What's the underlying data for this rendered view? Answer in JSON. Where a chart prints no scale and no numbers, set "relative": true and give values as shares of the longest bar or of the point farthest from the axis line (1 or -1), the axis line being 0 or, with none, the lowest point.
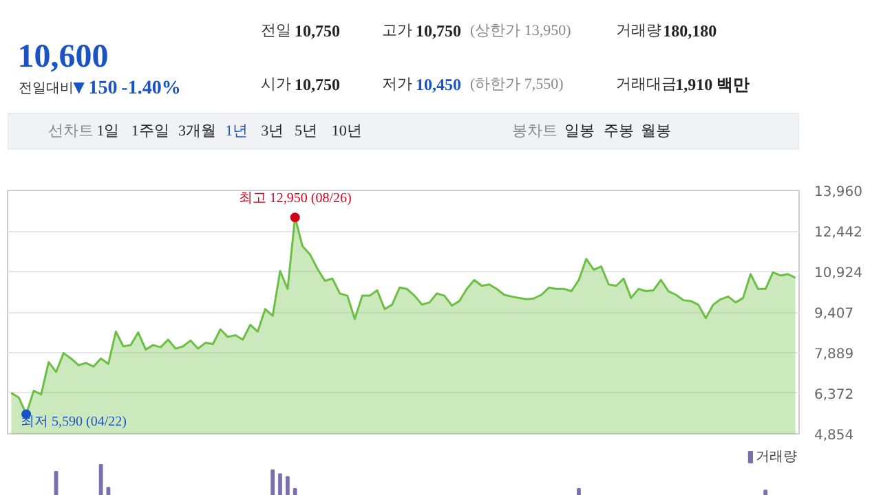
{
  "chart_data": [
    {
      "type": "other",
      "annotations": [
        "10,600",
        "전일대비",
        "▼150",
        "-1.40%",
        "전일",
        "10,750",
        "고가",
        "10,750",
        "(상한가 13,950)",
        "거래량",
        "180,180",
        "시가",
        "10,750",
        "저가",
        "10,450",
        "(하한가 7,550)",
        "거래대금",
        "1,910 백만",
        "선차트",
        "1일",
        "1주일",
        "3개월",
        "1년",
        "3년",
        "5년",
        "10년",
        "봉차트",
        "일봉",
        "주봉",
        "월봉"
      ]
    },
    {
      "type": "area",
      "categories": [
        null,
        null,
        null,
        null,
        null,
        null,
        null,
        null,
        null,
        null,
        null,
        null,
        null,
        null,
        null,
        null,
        null,
        null,
        null,
        null,
        null,
        null,
        null,
        null,
        null,
        null,
        null,
        null,
        null,
        null,
        null,
        null,
        null,
        null,
        null,
        null,
        null,
        null,
        null,
        null,
        null,
        null,
        null,
        null,
        null,
        null,
        null,
        null,
        null,
        null,
        null,
        null,
        null,
        null,
        null,
        null,
        null,
        null,
        null,
        null,
        null,
        null,
        null,
        null,
        null,
        null,
        null,
        null,
        null,
        null,
        null,
        null,
        null,
        null,
        null,
        null,
        null,
        null,
        null,
        null,
        null,
        null,
        null,
        null,
        null,
        null,
        null,
        null,
        null,
        null,
        null,
        null,
        null,
        null,
        null,
        null,
        null,
        null,
        null,
        null,
        null,
        null,
        null,
        null,
        null,
        null
      ],
      "series": [
        {
          "color": "#6cbf45",
          "values": [
            6381,
            6213,
            5590,
            6465,
            6331,
            7539,
            7170,
            7874,
            7673,
            7421,
            7505,
            7371,
            7673,
            7472,
            8680,
            8126,
            8176,
            8646,
            8009,
            8176,
            8093,
            8378,
            8042,
            8126,
            8344,
            8042,
            8260,
            8210,
            8764,
            8478,
            8546,
            8378,
            8932,
            8680,
            9519,
            9267,
            10945,
            10274,
            12950,
            11868,
            11566,
            11029,
            10576,
            10660,
            10106,
            10022,
            9150,
            10022,
            10022,
            10224,
            9519,
            9687,
            10324,
            10274,
            10022,
            9687,
            9771,
            10106,
            10022,
            9653,
            9821,
            10274,
            10610,
            10391,
            10442,
            10274,
            10056,
            9989,
            9938,
            9888,
            9922,
            10056,
            10324,
            10274,
            10274,
            10190,
            10610,
            11398,
            10995,
            11113,
            10442,
            10391,
            10660,
            9938,
            10274,
            10190,
            10224,
            10610,
            10190,
            10056,
            9854,
            9821,
            9687,
            9183,
            9687,
            9888,
            9989,
            9771,
            9938,
            10828,
            10274,
            10274,
            10895,
            10777,
            10828,
            10693
          ]
        }
      ],
      "ylim": [
        4854,
        13960
      ],
      "yticks": [
        {
          "value": 4854,
          "label": "4,854"
        },
        {
          "value": 6372,
          "label": "6,372"
        },
        {
          "value": 7889,
          "label": "7,889"
        },
        {
          "value": 9407,
          "label": "9,407"
        },
        {
          "value": 10924,
          "label": "10,924"
        },
        {
          "value": 12442,
          "label": "12,442"
        },
        {
          "value": 13960,
          "label": "13,960"
        }
      ],
      "grid": "y",
      "tick_labels": "y",
      "annotations": [
        {
          "text": "최고 12,950 (08/26)",
          "y": 12950
        },
        "최저 5,590 (04/22)"
      ]
    },
    {
      "type": "bar",
      "relative": true,
      "legend": "top right",
      "tick_labels": false,
      "categories": [
        null,
        null,
        null,
        null,
        null,
        null,
        null,
        null,
        null,
        null,
        null,
        null,
        null,
        null,
        null,
        null,
        null,
        null,
        null,
        null,
        null,
        null,
        null,
        null,
        null,
        null,
        null,
        null,
        null,
        null,
        null,
        null,
        null,
        null,
        null,
        null,
        null,
        null,
        null,
        null,
        null,
        null,
        null,
        null,
        null,
        null,
        null,
        null,
        null,
        null,
        null,
        null,
        null,
        null,
        null,
        null,
        null,
        null,
        null,
        null,
        null,
        null,
        null,
        null,
        null,
        null,
        null,
        null,
        null,
        null,
        null,
        null,
        null,
        null,
        null,
        null,
        null,
        null,
        null,
        null,
        null,
        null,
        null,
        null,
        null,
        null,
        null,
        null,
        null,
        null,
        null,
        null,
        null,
        null,
        null,
        null,
        null,
        null,
        null,
        null,
        null,
        null,
        null,
        null,
        null,
        null
      ],
      "series": [
        {
          "name": "거래량",
          "color": "#7b6fb0",
          "values": [
            null,
            null,
            null,
            null,
            null,
            null,
            0.78,
            null,
            null,
            null,
            null,
            null,
            1,
            0.26,
            null,
            null,
            null,
            null,
            null,
            null,
            null,
            null,
            null,
            null,
            null,
            null,
            null,
            null,
            null,
            null,
            null,
            null,
            null,
            null,
            null,
            0.83,
            0.7,
            0.61,
            0.22,
            null,
            null,
            null,
            null,
            null,
            null,
            null,
            null,
            null,
            null,
            null,
            null,
            null,
            null,
            null,
            null,
            null,
            null,
            null,
            null,
            null,
            null,
            null,
            null,
            null,
            null,
            null,
            null,
            null,
            null,
            null,
            null,
            null,
            null,
            null,
            null,
            null,
            0.22,
            null,
            null,
            null,
            null,
            null,
            null,
            null,
            null,
            null,
            null,
            null,
            null,
            null,
            null,
            null,
            null,
            null,
            null,
            null,
            null,
            null,
            null,
            null,
            null,
            0.17,
            null,
            null,
            null,
            null
          ]
        }
      ]
    }
  ]
}
